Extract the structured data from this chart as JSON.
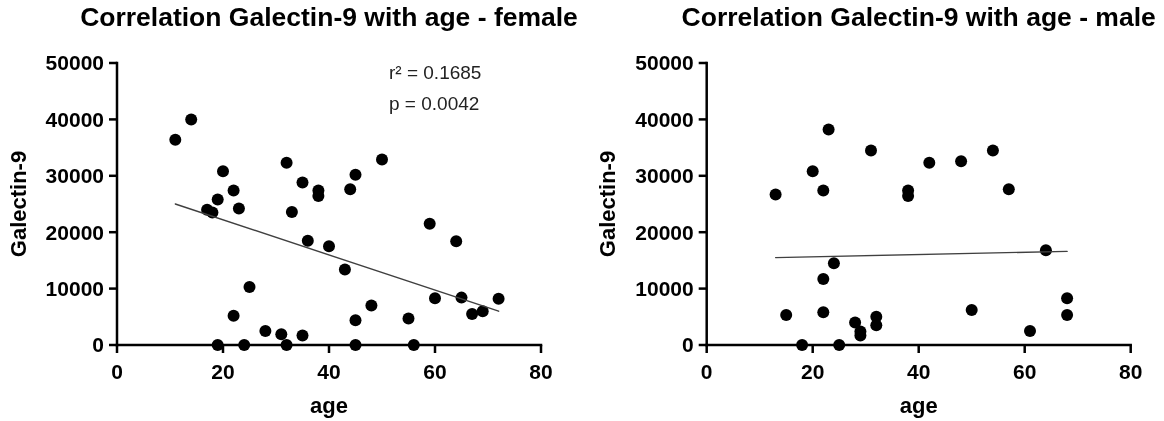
{
  "chart_data": [
    {
      "type": "scatter",
      "title": "Correlation Galectin-9 with age - female",
      "xlabel": "age",
      "ylabel": "Galectin-9",
      "xlim": [
        0,
        80
      ],
      "xticks": [
        0,
        20,
        40,
        60,
        80
      ],
      "ylim": [
        0,
        50000
      ],
      "yticks": [
        0,
        10000,
        20000,
        30000,
        40000,
        50000
      ],
      "annotations": [
        "r² = 0.1685",
        "p = 0.0042"
      ],
      "series": [
        {
          "color": "#000000",
          "marker": "circle",
          "x": [
            11,
            14,
            20,
            22,
            19,
            17,
            18,
            23,
            32,
            35,
            38,
            38,
            33,
            36,
            40,
            25,
            22,
            28,
            31,
            35,
            19,
            24,
            32,
            50,
            45,
            44,
            43,
            59,
            64,
            60,
            65,
            72,
            67,
            69,
            48,
            45,
            55,
            45,
            56
          ],
          "values": [
            36400,
            40000,
            30800,
            27400,
            25800,
            24000,
            23500,
            24200,
            32300,
            28800,
            27400,
            26400,
            23600,
            18500,
            17500,
            10300,
            5200,
            2500,
            1900,
            1700,
            0,
            0,
            0,
            32900,
            30200,
            27600,
            13400,
            21500,
            18400,
            8300,
            8400,
            8200,
            5500,
            6000,
            7000,
            4400,
            4700,
            0,
            0
          ]
        },
        {
          "type": "line",
          "color": "#404040",
          "x": [
            11,
            72
          ],
          "values": [
            25000,
            6000
          ]
        }
      ]
    },
    {
      "type": "scatter",
      "title": "Correlation Galectin-9 with age - male",
      "xlabel": "age",
      "ylabel": "Galectin-9",
      "xlim": [
        0,
        80
      ],
      "xticks": [
        0,
        20,
        40,
        60,
        80
      ],
      "ylim": [
        0,
        50000
      ],
      "yticks": [
        0,
        10000,
        20000,
        30000,
        40000,
        50000
      ],
      "series": [
        {
          "color": "#000000",
          "marker": "circle",
          "x": [
            13,
            23,
            20,
            22,
            31,
            38,
            38,
            42,
            24,
            22,
            15,
            22,
            28,
            29,
            29,
            32,
            32,
            18,
            25,
            48,
            54,
            57,
            64,
            50,
            68,
            68,
            61
          ],
          "values": [
            26700,
            38200,
            30800,
            27400,
            34500,
            27400,
            26400,
            32300,
            14500,
            11700,
            5300,
            5800,
            4000,
            2400,
            1700,
            5000,
            3500,
            0,
            0,
            32600,
            34500,
            27600,
            16800,
            6200,
            8300,
            5300,
            2500
          ]
        },
        {
          "type": "line",
          "color": "#404040",
          "x": [
            13,
            68
          ],
          "values": [
            15500,
            16600
          ]
        }
      ]
    }
  ]
}
